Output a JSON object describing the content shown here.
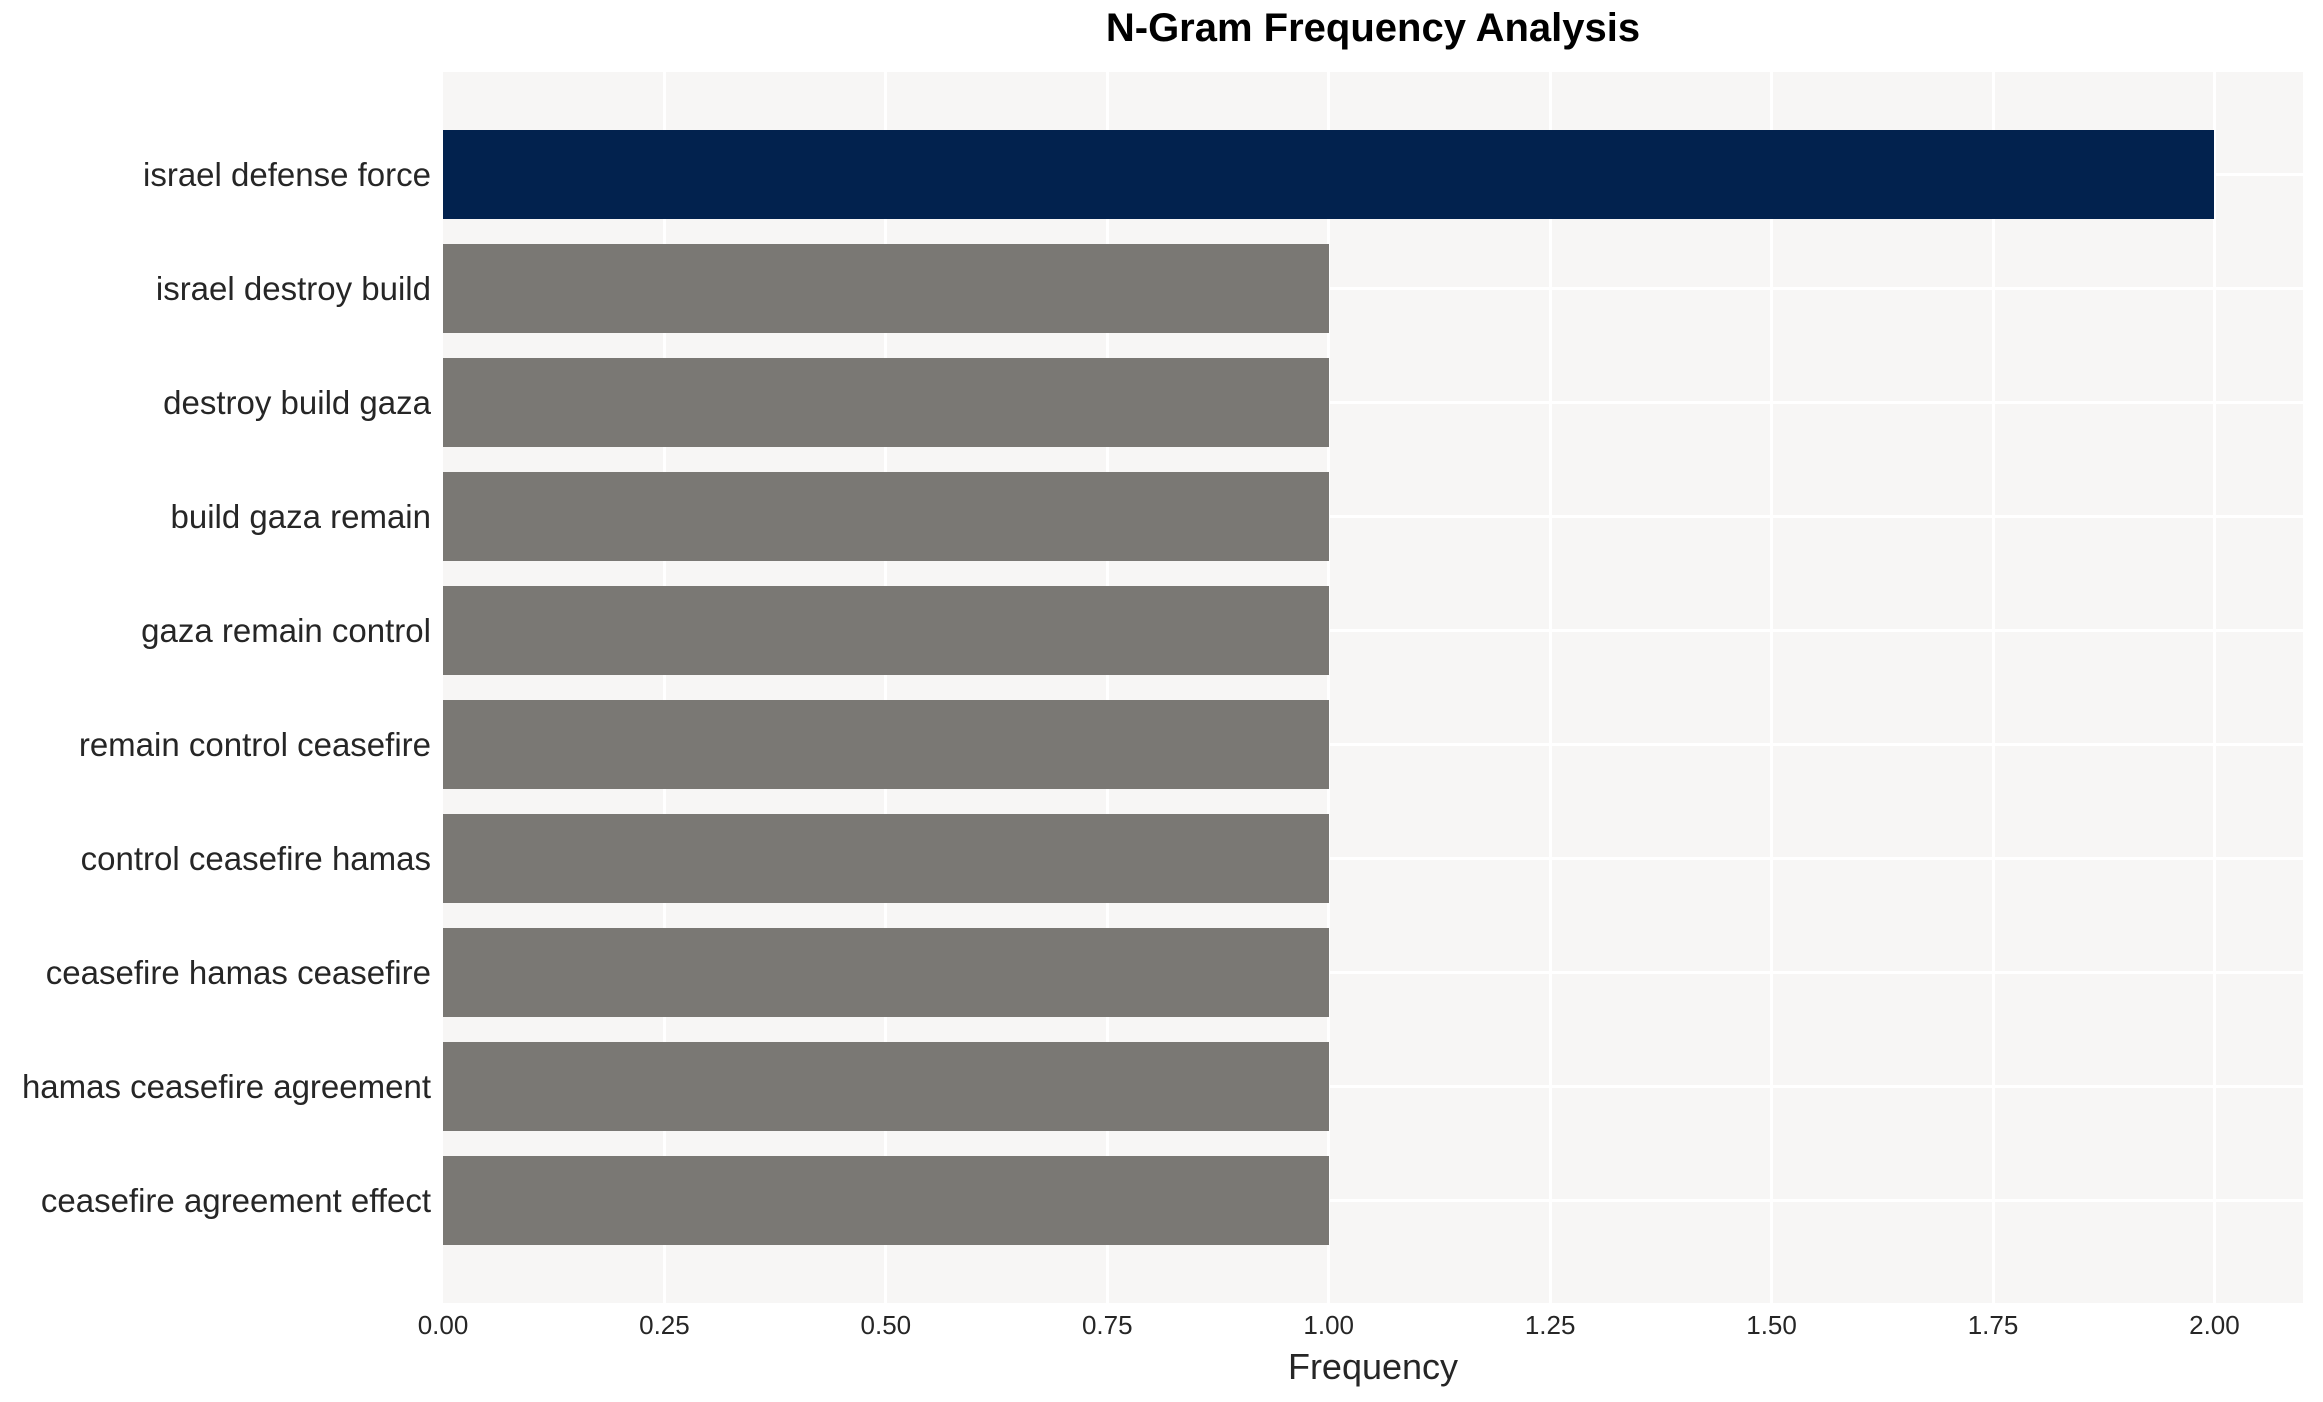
{
  "chart_data": {
    "type": "bar",
    "orientation": "horizontal",
    "title": "N-Gram Frequency Analysis",
    "xlabel": "Frequency",
    "ylabel": "",
    "categories": [
      "israel defense force",
      "israel destroy build",
      "destroy build gaza",
      "build gaza remain",
      "gaza remain control",
      "remain control ceasefire",
      "control ceasefire hamas",
      "ceasefire hamas ceasefire",
      "hamas ceasefire agreement",
      "ceasefire agreement effect"
    ],
    "values": [
      2.0,
      1.0,
      1.0,
      1.0,
      1.0,
      1.0,
      1.0,
      1.0,
      1.0,
      1.0
    ],
    "highlight_index": 0,
    "xlim": [
      0,
      2.1
    ],
    "xticks": [
      {
        "label": "0.00",
        "value": 0.0
      },
      {
        "label": "0.25",
        "value": 0.25
      },
      {
        "label": "0.50",
        "value": 0.5
      },
      {
        "label": "0.75",
        "value": 0.75
      },
      {
        "label": "1.00",
        "value": 1.0
      },
      {
        "label": "1.25",
        "value": 1.25
      },
      {
        "label": "1.50",
        "value": 1.5
      },
      {
        "label": "1.75",
        "value": 1.75
      },
      {
        "label": "2.00",
        "value": 2.0
      }
    ],
    "grid": true,
    "legend": null,
    "colors": {
      "bar_highlight": "#02224e",
      "bar_default": "#7a7874",
      "plot_background": "#f7f6f5",
      "gridline": "#ffffff",
      "tick_text": "#262626",
      "title_text": "#000000"
    }
  }
}
